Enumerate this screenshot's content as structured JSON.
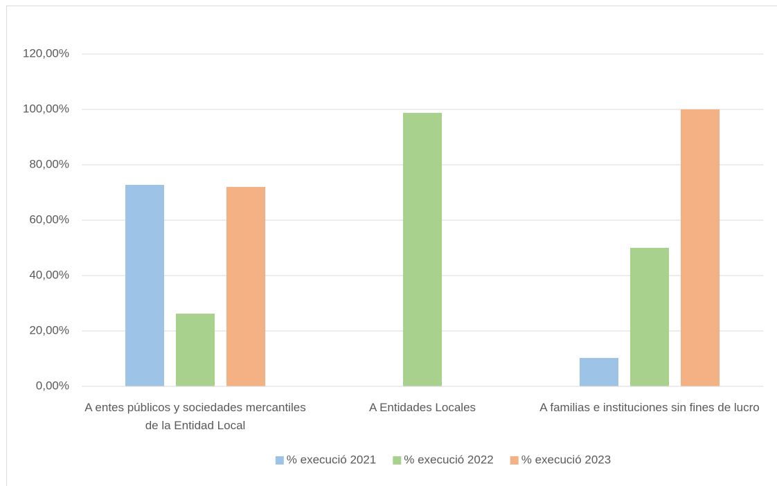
{
  "chart_data": {
    "type": "bar",
    "categories": [
      "A entes públicos y sociedades mercantiles de la Entidad Local",
      "A Entidades Locales",
      "A familias e instituciones sin fines de lucro"
    ],
    "series": [
      {
        "name": "% execució 2021",
        "color": "#9dc3e6",
        "values": [
          72.75,
          null,
          10.25
        ]
      },
      {
        "name": "% execució 2022",
        "color": "#a9d18e",
        "values": [
          26.25,
          98.75,
          50
        ]
      },
      {
        "name": "% execució 2023",
        "color": "#f4b183",
        "values": [
          72,
          null,
          100
        ]
      }
    ],
    "ylim": [
      0,
      120
    ],
    "yticks": [
      {
        "value": 0,
        "label": "0,00%"
      },
      {
        "value": 20,
        "label": "20,00%"
      },
      {
        "value": 40,
        "label": "40,00%"
      },
      {
        "value": 60,
        "label": "60,00%"
      },
      {
        "value": 80,
        "label": "80,00%"
      },
      {
        "value": 100,
        "label": "100,00%"
      },
      {
        "value": 120,
        "label": "120,00%"
      }
    ],
    "grid": true,
    "legend": "bottom"
  }
}
